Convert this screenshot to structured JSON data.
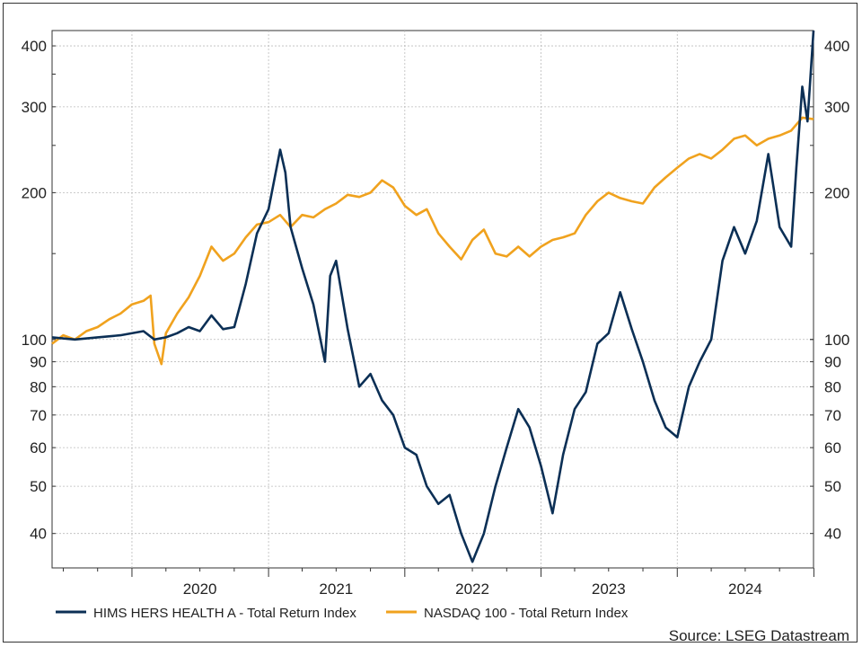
{
  "chart_data": {
    "type": "line",
    "y_scale": "log",
    "ylim": [
      34,
      430
    ],
    "xlim": [
      "2019-06-01",
      "2024-12-31"
    ],
    "y_ticks": [
      40,
      50,
      60,
      70,
      80,
      90,
      100,
      200,
      300,
      400
    ],
    "x_year_labels": [
      "2020",
      "2021",
      "2022",
      "2023",
      "2024"
    ],
    "grid": true,
    "legend_placement": "bottom",
    "source": "Source: LSEG Datastream",
    "series": [
      {
        "name": "HIMS HERS HEALTH A - Total Return Index",
        "color": "#0b2f55",
        "points": [
          [
            "2019-06-01",
            101
          ],
          [
            "2019-08-01",
            100
          ],
          [
            "2019-10-01",
            101
          ],
          [
            "2019-12-01",
            102
          ],
          [
            "2020-02-01",
            104
          ],
          [
            "2020-03-01",
            100
          ],
          [
            "2020-04-01",
            101
          ],
          [
            "2020-05-01",
            103
          ],
          [
            "2020-06-01",
            106
          ],
          [
            "2020-07-01",
            104
          ],
          [
            "2020-08-01",
            112
          ],
          [
            "2020-09-01",
            105
          ],
          [
            "2020-10-01",
            106
          ],
          [
            "2020-11-01",
            130
          ],
          [
            "2020-12-01",
            165
          ],
          [
            "2021-01-01",
            185
          ],
          [
            "2021-02-01",
            245
          ],
          [
            "2021-02-15",
            220
          ],
          [
            "2021-03-01",
            170
          ],
          [
            "2021-04-01",
            140
          ],
          [
            "2021-05-01",
            118
          ],
          [
            "2021-06-01",
            90
          ],
          [
            "2021-06-15",
            135
          ],
          [
            "2021-07-01",
            145
          ],
          [
            "2021-08-01",
            105
          ],
          [
            "2021-09-01",
            80
          ],
          [
            "2021-10-01",
            85
          ],
          [
            "2021-11-01",
            75
          ],
          [
            "2021-12-01",
            70
          ],
          [
            "2022-01-01",
            60
          ],
          [
            "2022-02-01",
            58
          ],
          [
            "2022-03-01",
            50
          ],
          [
            "2022-04-01",
            46
          ],
          [
            "2022-05-01",
            48
          ],
          [
            "2022-06-01",
            40
          ],
          [
            "2022-07-01",
            35
          ],
          [
            "2022-08-01",
            40
          ],
          [
            "2022-09-01",
            50
          ],
          [
            "2022-10-01",
            60
          ],
          [
            "2022-11-01",
            72
          ],
          [
            "2022-12-01",
            66
          ],
          [
            "2023-01-01",
            55
          ],
          [
            "2023-02-01",
            44
          ],
          [
            "2023-03-01",
            58
          ],
          [
            "2023-04-01",
            72
          ],
          [
            "2023-05-01",
            78
          ],
          [
            "2023-06-01",
            98
          ],
          [
            "2023-07-01",
            103
          ],
          [
            "2023-08-01",
            125
          ],
          [
            "2023-09-01",
            105
          ],
          [
            "2023-10-01",
            90
          ],
          [
            "2023-11-01",
            75
          ],
          [
            "2023-12-01",
            66
          ],
          [
            "2024-01-01",
            63
          ],
          [
            "2024-02-01",
            80
          ],
          [
            "2024-03-01",
            90
          ],
          [
            "2024-04-01",
            100
          ],
          [
            "2024-05-01",
            145
          ],
          [
            "2024-06-01",
            170
          ],
          [
            "2024-07-01",
            150
          ],
          [
            "2024-08-01",
            175
          ],
          [
            "2024-09-01",
            240
          ],
          [
            "2024-09-15",
            205
          ],
          [
            "2024-10-01",
            170
          ],
          [
            "2024-11-01",
            155
          ],
          [
            "2024-11-15",
            225
          ],
          [
            "2024-12-01",
            330
          ],
          [
            "2024-12-15",
            280
          ],
          [
            "2024-12-31",
            430
          ]
        ]
      },
      {
        "name": "NASDAQ 100 - Total Return Index",
        "color": "#f0a21e",
        "points": [
          [
            "2019-06-01",
            98
          ],
          [
            "2019-07-01",
            102
          ],
          [
            "2019-08-01",
            100
          ],
          [
            "2019-09-01",
            104
          ],
          [
            "2019-10-01",
            106
          ],
          [
            "2019-11-01",
            110
          ],
          [
            "2019-12-01",
            113
          ],
          [
            "2020-01-01",
            118
          ],
          [
            "2020-02-01",
            120
          ],
          [
            "2020-02-20",
            123
          ],
          [
            "2020-03-01",
            98
          ],
          [
            "2020-03-20",
            89
          ],
          [
            "2020-04-01",
            103
          ],
          [
            "2020-05-01",
            113
          ],
          [
            "2020-06-01",
            122
          ],
          [
            "2020-07-01",
            135
          ],
          [
            "2020-08-01",
            155
          ],
          [
            "2020-09-01",
            145
          ],
          [
            "2020-10-01",
            150
          ],
          [
            "2020-11-01",
            162
          ],
          [
            "2020-12-01",
            172
          ],
          [
            "2021-01-01",
            174
          ],
          [
            "2021-02-01",
            180
          ],
          [
            "2021-03-01",
            170
          ],
          [
            "2021-04-01",
            180
          ],
          [
            "2021-05-01",
            178
          ],
          [
            "2021-06-01",
            185
          ],
          [
            "2021-07-01",
            190
          ],
          [
            "2021-08-01",
            198
          ],
          [
            "2021-09-01",
            196
          ],
          [
            "2021-10-01",
            200
          ],
          [
            "2021-11-01",
            212
          ],
          [
            "2021-12-01",
            205
          ],
          [
            "2022-01-01",
            188
          ],
          [
            "2022-02-01",
            180
          ],
          [
            "2022-03-01",
            185
          ],
          [
            "2022-04-01",
            165
          ],
          [
            "2022-05-01",
            155
          ],
          [
            "2022-06-01",
            146
          ],
          [
            "2022-07-01",
            160
          ],
          [
            "2022-08-01",
            168
          ],
          [
            "2022-09-01",
            150
          ],
          [
            "2022-10-01",
            148
          ],
          [
            "2022-11-01",
            155
          ],
          [
            "2022-12-01",
            148
          ],
          [
            "2023-01-01",
            155
          ],
          [
            "2023-02-01",
            160
          ],
          [
            "2023-03-01",
            162
          ],
          [
            "2023-04-01",
            165
          ],
          [
            "2023-05-01",
            180
          ],
          [
            "2023-06-01",
            192
          ],
          [
            "2023-07-01",
            200
          ],
          [
            "2023-08-01",
            195
          ],
          [
            "2023-09-01",
            192
          ],
          [
            "2023-10-01",
            190
          ],
          [
            "2023-11-01",
            205
          ],
          [
            "2023-12-01",
            215
          ],
          [
            "2024-01-01",
            225
          ],
          [
            "2024-02-01",
            235
          ],
          [
            "2024-03-01",
            240
          ],
          [
            "2024-04-01",
            235
          ],
          [
            "2024-05-01",
            245
          ],
          [
            "2024-06-01",
            258
          ],
          [
            "2024-07-01",
            262
          ],
          [
            "2024-08-01",
            250
          ],
          [
            "2024-09-01",
            258
          ],
          [
            "2024-10-01",
            262
          ],
          [
            "2024-11-01",
            268
          ],
          [
            "2024-12-01",
            285
          ],
          [
            "2024-12-31",
            283
          ]
        ]
      }
    ]
  },
  "legend": [
    {
      "label": "HIMS HERS HEALTH A - Total Return Index",
      "color": "#0b2f55"
    },
    {
      "label": "NASDAQ 100 - Total Return Index",
      "color": "#f0a21e"
    }
  ]
}
